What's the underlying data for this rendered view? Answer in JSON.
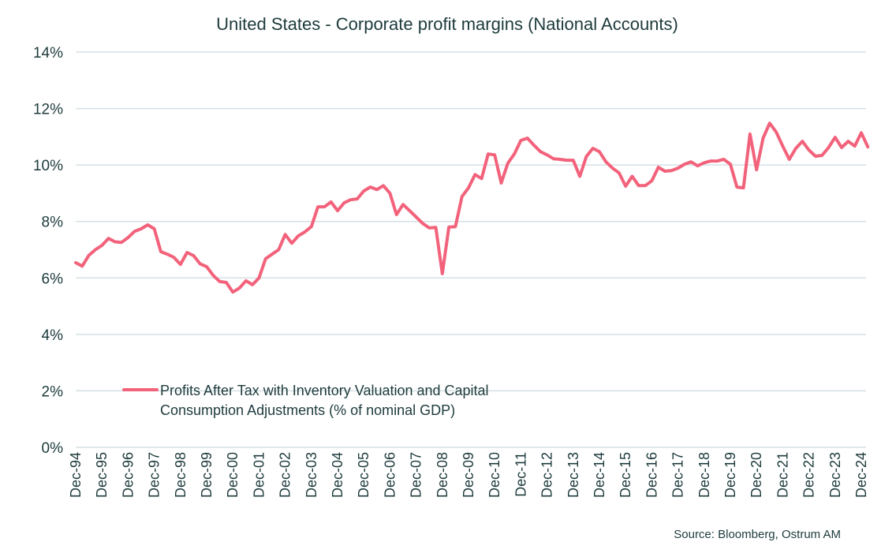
{
  "chart_data": {
    "type": "line",
    "title": "United States - Corporate profit margins (National Accounts)",
    "xlabel": "",
    "ylabel": "",
    "ylim": [
      0,
      14
    ],
    "yticks": [
      "0%",
      "2%",
      "4%",
      "6%",
      "8%",
      "10%",
      "12%",
      "14%"
    ],
    "grid": true,
    "legend_position": "inside-bottom-left",
    "x_tick_labels": [
      "Dec-94",
      "Dec-95",
      "Dec-96",
      "Dec-97",
      "Dec-98",
      "Dec-99",
      "Dec-00",
      "Dec-01",
      "Dec-02",
      "Dec-03",
      "Dec-04",
      "Dec-05",
      "Dec-06",
      "Dec-07",
      "Dec-08",
      "Dec-09",
      "Dec-10",
      "Dec-11",
      "Dec-12",
      "Dec-13",
      "Dec-14",
      "Dec-15",
      "Dec-16",
      "Dec-17",
      "Dec-18",
      "Dec-19",
      "Dec-20",
      "Dec-21",
      "Dec-22",
      "Dec-23",
      "Dec-24"
    ],
    "frequency": "quarterly",
    "series": [
      {
        "name": "Profits After Tax with Inventory Valuation and Capital Consumption Adjustments (% of nominal GDP)",
        "color": "#f2627b",
        "values": [
          6.54,
          6.42,
          6.8,
          7.0,
          7.15,
          7.4,
          7.28,
          7.26,
          7.43,
          7.65,
          7.74,
          7.88,
          7.74,
          6.93,
          6.84,
          6.73,
          6.48,
          6.9,
          6.79,
          6.5,
          6.4,
          6.09,
          5.87,
          5.84,
          5.5,
          5.64,
          5.9,
          5.76,
          6.0,
          6.68,
          6.84,
          7.0,
          7.54,
          7.23,
          7.49,
          7.63,
          7.82,
          8.52,
          8.52,
          8.69,
          8.38,
          8.66,
          8.77,
          8.8,
          9.08,
          9.22,
          9.13,
          9.27,
          9.0,
          8.24,
          8.6,
          8.38,
          8.16,
          7.93,
          7.77,
          7.79,
          6.15,
          7.8,
          7.82,
          8.88,
          9.19,
          9.66,
          9.52,
          10.39,
          10.36,
          9.36,
          10.06,
          10.39,
          10.87,
          10.95,
          10.7,
          10.47,
          10.36,
          10.22,
          10.2,
          10.17,
          10.17,
          9.6,
          10.3,
          10.59,
          10.47,
          10.11,
          9.89,
          9.72,
          9.25,
          9.6,
          9.27,
          9.27,
          9.44,
          9.92,
          9.78,
          9.8,
          9.89,
          10.03,
          10.11,
          9.97,
          10.08,
          10.14,
          10.14,
          10.2,
          10.03,
          9.22,
          9.19,
          11.1,
          9.83,
          10.95,
          11.48,
          11.17,
          10.67,
          10.2,
          10.59,
          10.84,
          10.53,
          10.31,
          10.34,
          10.62,
          10.98,
          10.62,
          10.84,
          10.67,
          11.14,
          10.64
        ]
      }
    ],
    "legend_lines": [
      "Profits After Tax with Inventory Valuation and Capital",
      "Consumption Adjustments (% of nominal GDP)"
    ],
    "source": "Source: Bloomberg,  Ostrum  AM",
    "colors": {
      "grid": "#d5e0e6",
      "text": "#1d3a3c",
      "line": "#f2627b"
    }
  }
}
